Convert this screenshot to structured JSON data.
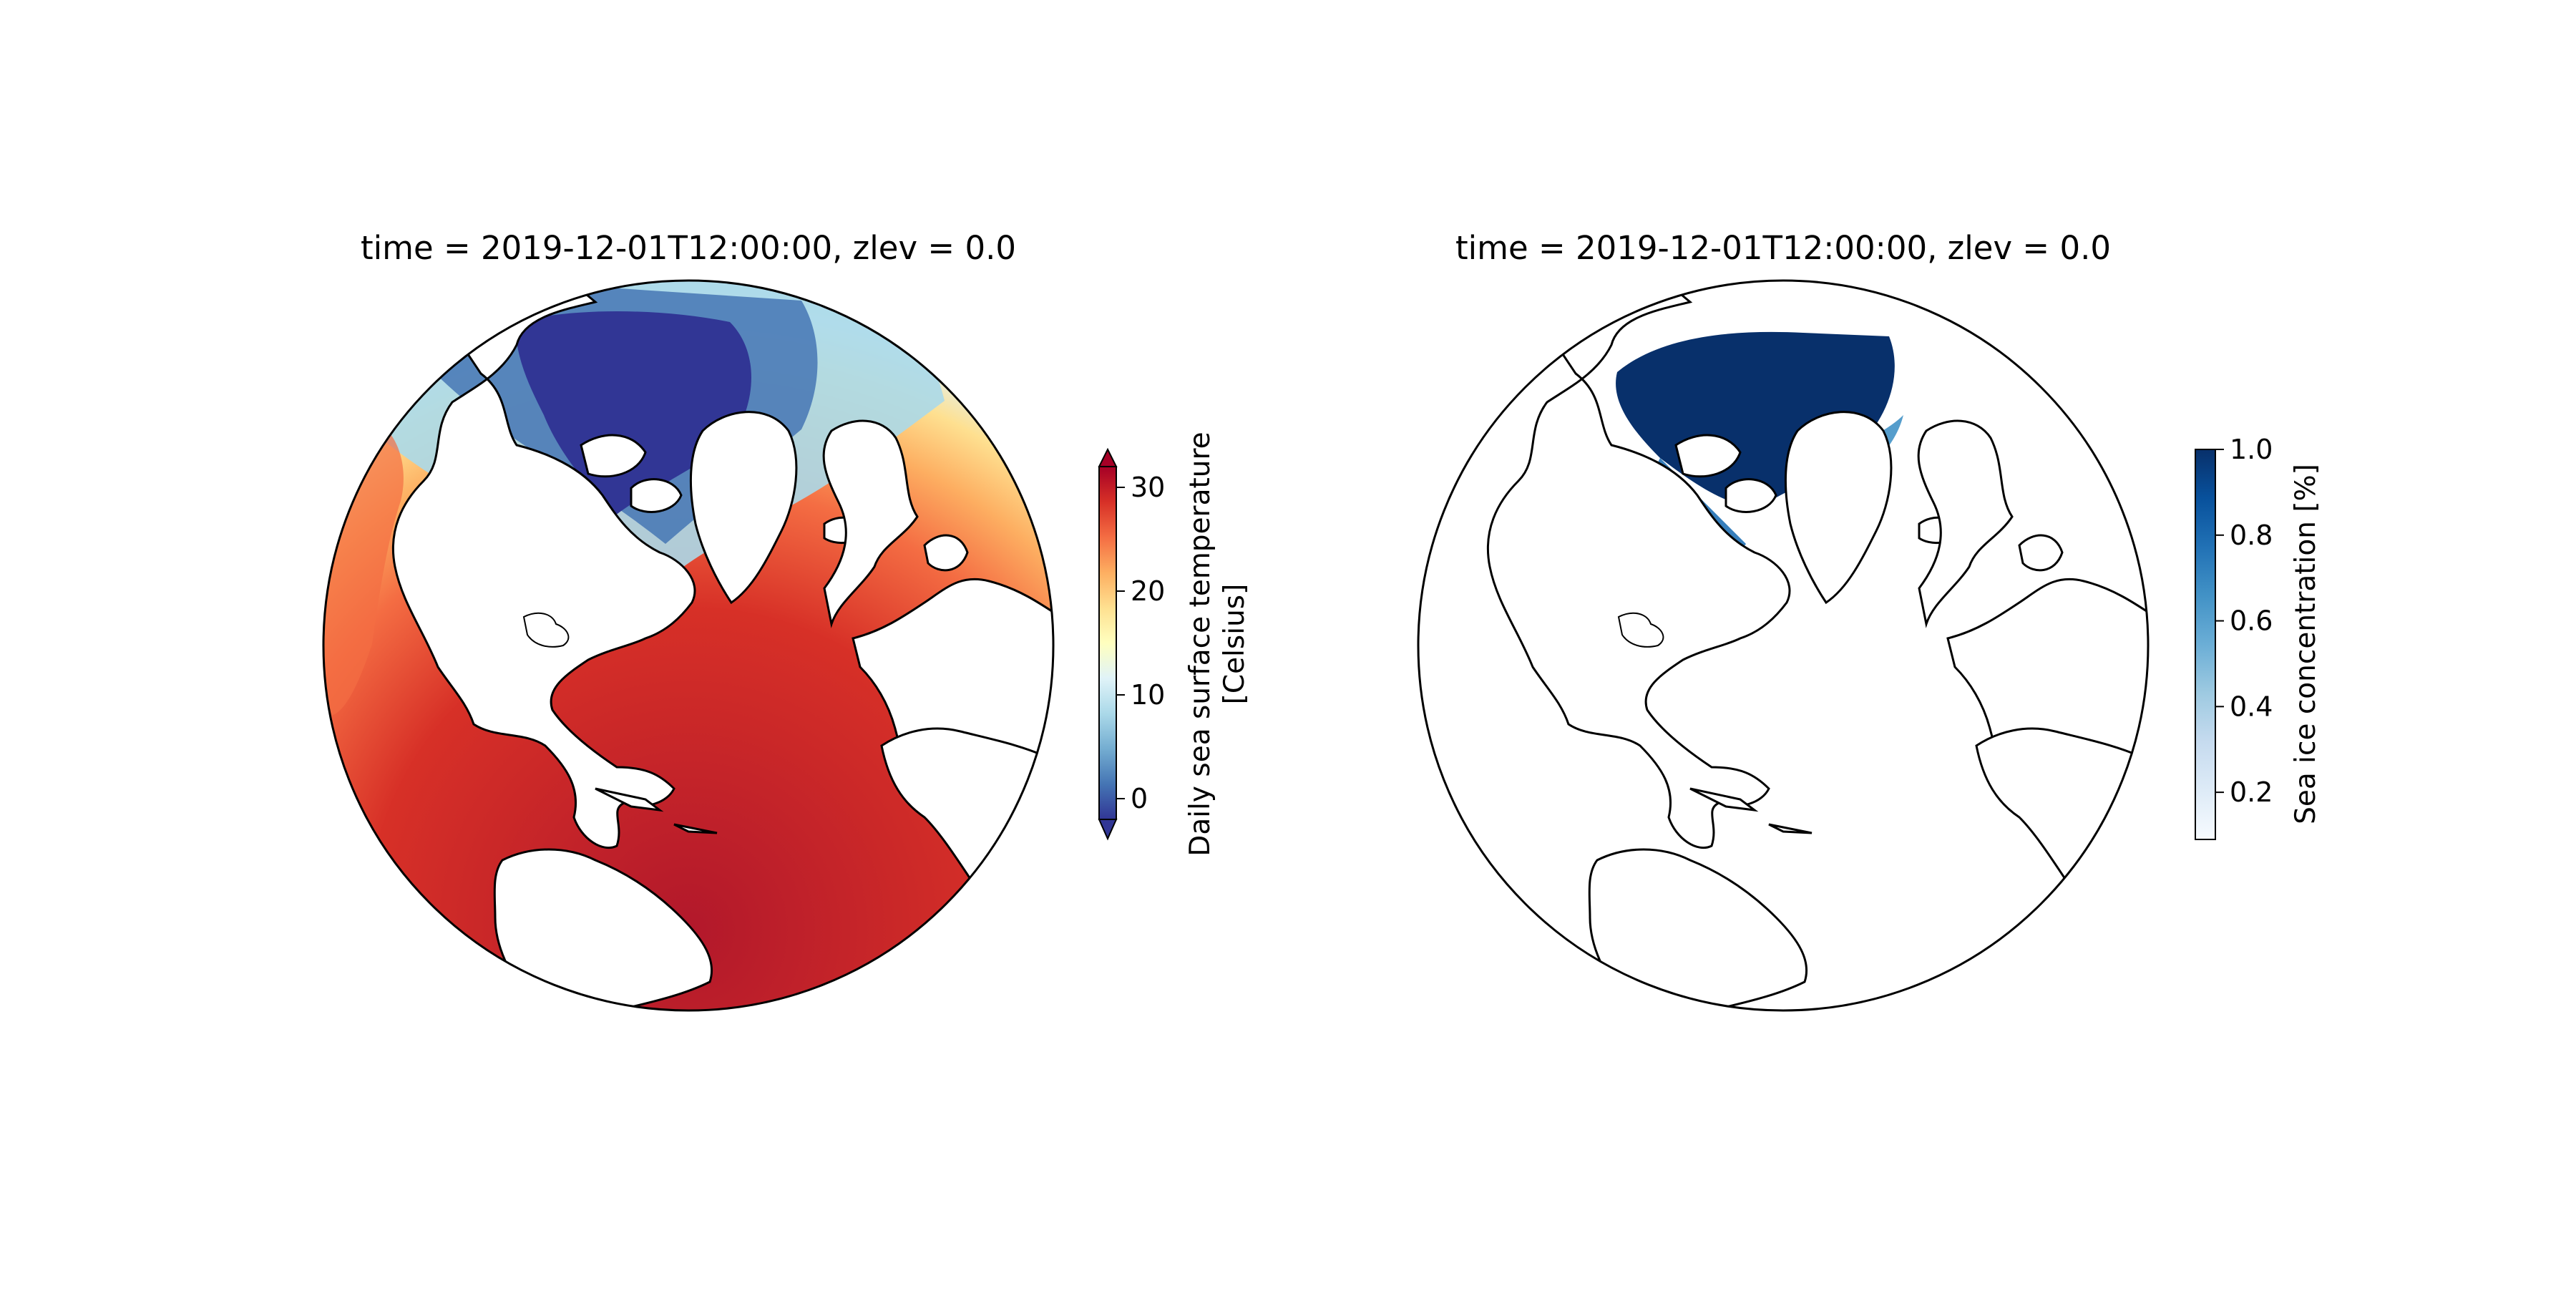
{
  "panels": [
    {
      "title": "time = 2019-12-01T12:00:00, zlev = 0.0",
      "variable": "sea-surface-temperature",
      "colormap": "RdYlBu_r",
      "colorbar": {
        "label_line1": "Daily sea surface temperature",
        "label_line2": "[Celsius]",
        "ticks": [
          "0",
          "10",
          "20",
          "30"
        ],
        "range": [
          -2,
          32
        ],
        "extend": "both",
        "colors": [
          "#313695",
          "#4575b4",
          "#74add1",
          "#abd9e9",
          "#e0f3f8",
          "#ffffbf",
          "#fee090",
          "#fdae61",
          "#f46d43",
          "#d73027",
          "#a50026"
        ]
      }
    },
    {
      "title": "time = 2019-12-01T12:00:00, zlev = 0.0",
      "variable": "sea-ice-concentration",
      "colormap": "Blues",
      "colorbar": {
        "label": "Sea ice concentration [%]",
        "ticks": [
          "0.2",
          "0.4",
          "0.6",
          "0.8",
          "1.0"
        ],
        "range": [
          0.09,
          1.0
        ],
        "extend": "neither",
        "colors": [
          "#f7fbff",
          "#deebf7",
          "#c6dbef",
          "#9ecae1",
          "#6baed6",
          "#4292c6",
          "#2171b5",
          "#08519c",
          "#08306b"
        ]
      }
    }
  ]
}
